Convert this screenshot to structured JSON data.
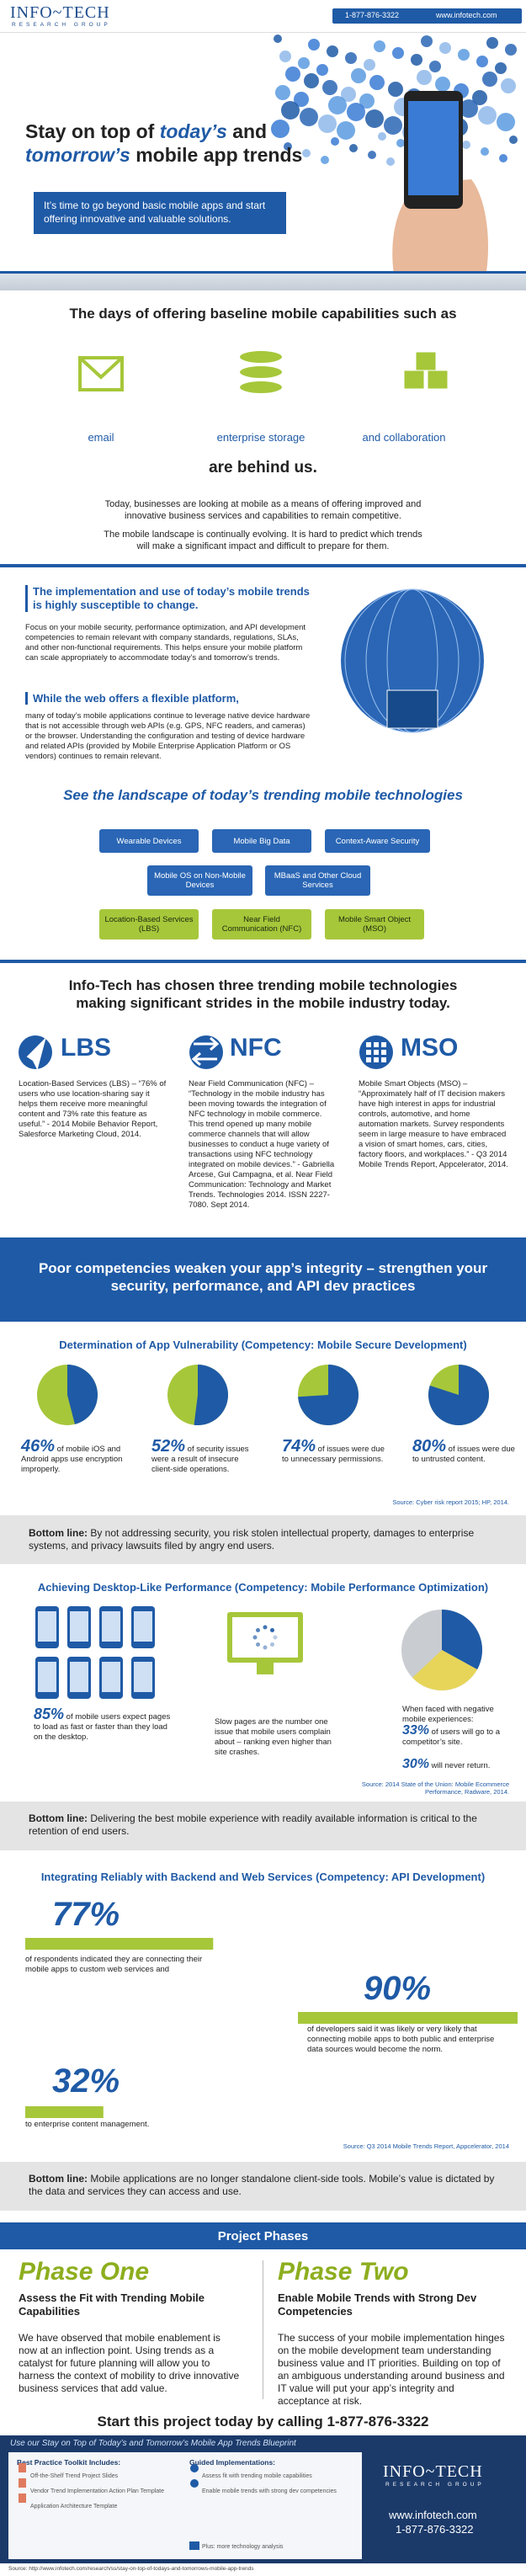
{
  "header": {
    "logo": "INFO~TECH",
    "logo_sub": "RESEARCH GROUP",
    "phone": "1-877-876-3322",
    "web": "www.infotech.com"
  },
  "hero": {
    "title": {
      "l1a": "Stay on top of ",
      "l1b": "today’s",
      "l1c": " and",
      "l2a": "tomorrow’s",
      "l2b": " mobile app trends"
    },
    "subtitle": "It’s time to go beyond basic mobile apps and start offering innovative and valuable solutions."
  },
  "baseline": {
    "heading": "The days of offering baseline mobile capabilities such as",
    "items": [
      "email",
      "enterprise storage",
      "and collaboration"
    ],
    "closing": "are behind us.",
    "paragraphs": [
      "Today, businesses are looking at mobile as a means of offering improved and innovative business services and capabilities to remain competitive.",
      "The mobile landscape is continually evolving. It is hard to predict which trends will make a significant impact and difficult to prepare for them."
    ]
  },
  "implementation": {
    "heading": "The implementation and use of today’s mobile trends is highly susceptible to change.",
    "paragraph": "Focus on your mobile security, performance optimization, and API development competencies to remain relevant with company standards, regulations, SLAs, and other non-functional requirements. This helps ensure your mobile platform can scale appropriately to accommodate today’s and tomorrow’s trends.",
    "heading2": "While the web offers a flexible platform,",
    "paragraph2": "many of today’s mobile applications continue to leverage native device hardware that is not accessible through web APIs (e.g. GPS, NFC readers, and cameras) or the browser. Understanding the configuration and testing of device hardware and related APIs (provided by Mobile Enterprise Application Platform or OS vendors) continues to remain relevant."
  },
  "landscape": {
    "heading": "See the landscape of today’s trending mobile technologies",
    "rows": [
      [
        "Wearable Devices",
        "Mobile Big Data",
        "Context-Aware Security"
      ],
      [
        "Mobile OS on Non-Mobile Devices",
        "MBaaS and Other Cloud Services"
      ],
      [
        "Location-Based Services (LBS)",
        "Near Field Communication (NFC)",
        "Mobile Smart Object (MSO)"
      ]
    ]
  },
  "trends": {
    "heading": "Info-Tech has chosen three trending mobile technologies making significant strides in the mobile industry today.",
    "items": [
      {
        "name": "LBS",
        "text": "Location-Based Services (LBS) – “76% of users who use location-sharing say it helps them receive more meaningful content and 73% rate this feature as useful.” - 2014 Mobile Behavior Report, Salesforce Marketing Cloud, 2014."
      },
      {
        "name": "NFC",
        "text": "Near Field Communication (NFC) – “Technology in the mobile industry has been moving towards the integration of NFC technology in mobile commerce. This trend opened up many mobile commerce channels that will allow businesses to conduct a huge variety of transactions using NFC technology integrated on mobile devices.” - Gabriella Arcese, Gui Campagna, et al. Near Field Communication: Technology and Market Trends. Technologies 2014. ISSN 2227-7080. Sept 2014."
      },
      {
        "name": "MSO",
        "text": "Mobile Smart Objects (MSO) – “Approximately half of IT decision makers have high interest in apps for industrial controls, automotive, and home automation markets. Survey respondents seem in large measure to have embraced a vision of smart homes, cars, cities, factory floors, and workplaces.” - Q3 2014 Mobile Trends Report, Appcelerator, 2014."
      }
    ]
  },
  "banner": "Poor competencies weaken your app’s integrity – strengthen your security, performance, and API dev practices",
  "security": {
    "heading": "Determination of App Vulnerability (Competency: Mobile Secure Development)",
    "stats": [
      {
        "value": 46,
        "label": "46%",
        "text": "of mobile iOS and Android apps use encryption improperly."
      },
      {
        "value": 52,
        "label": "52%",
        "text": "of security issues were a result of insecure client-side operations."
      },
      {
        "value": 74,
        "label": "74%",
        "text": "of issues were due to unnecessary permissions."
      },
      {
        "value": 80,
        "label": "80%",
        "text": "of issues were due to untrusted content."
      }
    ],
    "source": "Source: Cyber risk report 2015; HP, 2014.",
    "bottom_line": {
      "label": "Bottom line:",
      "text": "By not addressing security, you risk stolen intellectual property, damages to enterprise systems, and privacy lawsuits filed by angry end users."
    }
  },
  "performance": {
    "heading": "Achieving Desktop-Like Performance (Competency: Mobile Performance Optimization)",
    "text": "Slow pages are the number one issue that mobile users complain about – ranking even higher than site crashes.",
    "pie_intro": "When faced with negative mobile experiences:",
    "stats": [
      {
        "value": 85,
        "label": "85%",
        "text": "of mobile users expect pages to load as fast or faster than they load on the desktop."
      },
      {
        "value": 33,
        "label": "33%",
        "text": "of users will go to a competitor’s site."
      },
      {
        "value": 30,
        "label": "30%",
        "text": "will never return."
      }
    ],
    "source": "Source: 2014 State of the Union: Mobile Ecommerce Performance, Radware, 2014.",
    "bottom_line": {
      "label": "Bottom line:",
      "text": "Delivering the best mobile experience with readily available information is critical to the retention of end users."
    }
  },
  "api": {
    "heading": "Integrating Reliably with Backend and Web Services (Competency: API Development)",
    "stats": [
      {
        "value": 77,
        "label": "77%",
        "text": "of respondents indicated they are connecting their mobile apps to custom web services and"
      },
      {
        "value": 90,
        "label": "90%",
        "text": "of developers said it was likely or very likely that connecting mobile apps to both public and enterprise data sources would become the norm."
      },
      {
        "value": 32,
        "label": "32%",
        "text": "to enterprise content management."
      }
    ],
    "source": "Source: Q3 2014 Mobile Trends Report, Appcelerator, 2014",
    "bottom_line": {
      "label": "Bottom line:",
      "text": "Mobile applications are no longer standalone client-side tools. Mobile’s value is dictated by the data and services they can access and use."
    }
  },
  "phases": {
    "title": "Project Phases",
    "items": [
      {
        "name": "Phase One",
        "heading": "Assess the Fit with Trending Mobile Capabilities",
        "text": "We have observed that mobile enablement is now at an inflection point. Using trends as a catalyst for future planning will allow you to harness the context of mobility to drive innovative business services that add value."
      },
      {
        "name": "Phase Two",
        "heading": "Enable Mobile Trends with Strong Dev Competencies",
        "text": "The success of your mobile implementation hinges on the mobile development team understanding business value and IT priorities. Building on top of an ambiguous understanding around business and IT value will put your app’s integrity and acceptance at risk."
      }
    ]
  },
  "cta": "Start this project today by calling 1-877-876-3322",
  "footer": {
    "blueprint": "Use our Stay on Top of Today’s and Tomorrow’s Mobile App Trends Blueprint",
    "toolkit_heading": "Best Practice Toolkit Includes:",
    "toolkit": [
      "Off-the-Shelf Trend Project Slides",
      "Vendor Trend Implementation Action Plan Template",
      "Application Architecture Template"
    ],
    "guided_heading": "Guided Implementations:",
    "guided": [
      "Assess fit with trending mobile capabilities",
      "Enable mobile trends with strong dev competencies"
    ],
    "plus": "Plus: more technology analysis",
    "source": "Source: http://www.infotech.com/research/ss/stay-on-top-of-todays-and-tomorrows-mobile-app-trends"
  }
}
